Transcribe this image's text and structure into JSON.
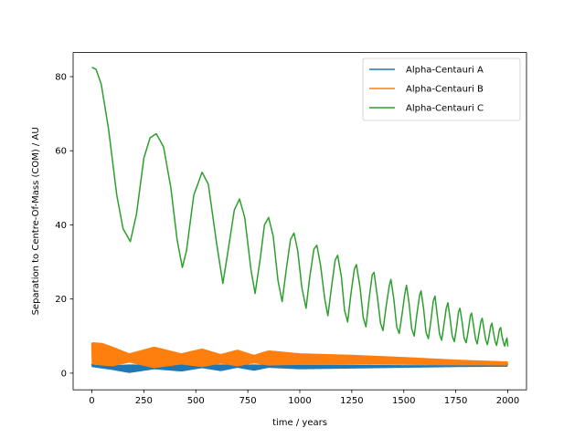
{
  "chart_data": {
    "type": "line",
    "title": "",
    "xlabel": "time / years",
    "ylabel": "Separation to Centre-Of-Mass (COM) / AU",
    "xlim": [
      -90,
      2090
    ],
    "ylim": [
      -4.5,
      86.5
    ],
    "xticks": [
      0,
      250,
      500,
      750,
      1000,
      1250,
      1500,
      1750,
      2000
    ],
    "yticks": [
      0,
      20,
      40,
      60,
      80
    ],
    "grid": false,
    "legend_position": "top-right",
    "series": [
      {
        "name": "Alpha-Centauri A",
        "color": "#1f77b4",
        "envelope": {
          "x": [
            0,
            100,
            180,
            300,
            430,
            530,
            620,
            700,
            780,
            850,
            1000,
            1250,
            1500,
            1750,
            2000
          ],
          "upper": [
            2.5,
            2.0,
            2.2,
            2.1,
            2.2,
            2.1,
            2.2,
            2.1,
            2.2,
            2.1,
            2.1,
            2.1,
            2.0,
            2.0,
            2.0
          ],
          "lower": [
            1.8,
            1.0,
            0.2,
            1.2,
            0.6,
            1.5,
            0.7,
            1.6,
            0.8,
            1.6,
            1.2,
            1.4,
            1.6,
            1.8,
            1.9
          ]
        }
      },
      {
        "name": "Alpha-Centauri B",
        "color": "#ff7f0e",
        "envelope": {
          "x": [
            0,
            50,
            100,
            180,
            300,
            430,
            530,
            620,
            700,
            780,
            850,
            1000,
            1250,
            1500,
            1750,
            2000
          ],
          "upper": [
            8.2,
            8.0,
            7.0,
            5.2,
            7.0,
            5.2,
            6.5,
            5.0,
            6.2,
            4.8,
            6.0,
            5.2,
            4.8,
            4.2,
            3.5,
            3.0
          ],
          "lower": [
            2.5,
            2.2,
            2.0,
            3.0,
            1.5,
            2.5,
            1.8,
            2.7,
            2.0,
            2.8,
            2.2,
            2.4,
            2.5,
            2.4,
            2.3,
            2.2
          ]
        }
      },
      {
        "name": "Alpha-Centauri C",
        "color": "#2ca02c",
        "points": [
          [
            0,
            82.5
          ],
          [
            20,
            82.0
          ],
          [
            45,
            78.0
          ],
          [
            80,
            66.0
          ],
          [
            120,
            48.0
          ],
          [
            150,
            39.0
          ],
          [
            185,
            35.5
          ],
          [
            215,
            43.0
          ],
          [
            250,
            58.0
          ],
          [
            280,
            63.5
          ],
          [
            310,
            64.6
          ],
          [
            345,
            61.0
          ],
          [
            380,
            50.0
          ],
          [
            410,
            36.0
          ],
          [
            435,
            28.5
          ],
          [
            455,
            33.0
          ],
          [
            490,
            48.0
          ],
          [
            530,
            54.2
          ],
          [
            560,
            51.0
          ],
          [
            600,
            35.0
          ],
          [
            630,
            24.2
          ],
          [
            655,
            33.0
          ],
          [
            685,
            44.0
          ],
          [
            710,
            47.0
          ],
          [
            735,
            42.0
          ],
          [
            765,
            28.0
          ],
          [
            785,
            21.5
          ],
          [
            810,
            31.0
          ],
          [
            830,
            40.0
          ],
          [
            850,
            42.0
          ],
          [
            872,
            37.0
          ],
          [
            895,
            25.0
          ],
          [
            915,
            19.3
          ],
          [
            935,
            28.0
          ],
          [
            955,
            36.0
          ],
          [
            972,
            37.8
          ],
          [
            990,
            33.0
          ],
          [
            1010,
            23.0
          ],
          [
            1030,
            17.5
          ],
          [
            1048,
            26.0
          ],
          [
            1068,
            33.5
          ],
          [
            1082,
            34.5
          ],
          [
            1100,
            29.0
          ],
          [
            1120,
            20.0
          ],
          [
            1135,
            15.5
          ],
          [
            1152,
            23.0
          ],
          [
            1170,
            30.5
          ],
          [
            1182,
            31.8
          ],
          [
            1200,
            26.0
          ],
          [
            1215,
            17.0
          ],
          [
            1230,
            13.8
          ],
          [
            1245,
            21.0
          ],
          [
            1262,
            28.0
          ],
          [
            1272,
            29.3
          ],
          [
            1290,
            23.0
          ],
          [
            1305,
            15.0
          ],
          [
            1318,
            12.5
          ],
          [
            1333,
            20.0
          ],
          [
            1348,
            26.5
          ],
          [
            1357,
            27.2
          ],
          [
            1372,
            21.0
          ],
          [
            1388,
            13.5
          ],
          [
            1400,
            11.5
          ],
          [
            1415,
            18.0
          ],
          [
            1430,
            23.5
          ],
          [
            1438,
            25.3
          ],
          [
            1452,
            20.0
          ],
          [
            1466,
            12.5
          ],
          [
            1478,
            10.7
          ],
          [
            1492,
            16.0
          ],
          [
            1505,
            21.5
          ],
          [
            1513,
            23.7
          ],
          [
            1525,
            19.0
          ],
          [
            1538,
            12.0
          ],
          [
            1550,
            10.0
          ],
          [
            1562,
            15.5
          ],
          [
            1576,
            21.0
          ],
          [
            1583,
            22.2
          ],
          [
            1595,
            17.5
          ],
          [
            1607,
            11.0
          ],
          [
            1618,
            9.3
          ],
          [
            1630,
            14.0
          ],
          [
            1642,
            19.5
          ],
          [
            1650,
            20.8
          ],
          [
            1660,
            16.0
          ],
          [
            1672,
            10.5
          ],
          [
            1682,
            8.9
          ],
          [
            1693,
            13.0
          ],
          [
            1704,
            17.5
          ],
          [
            1712,
            19.0
          ],
          [
            1722,
            15.0
          ],
          [
            1733,
            10.0
          ],
          [
            1743,
            8.5
          ],
          [
            1753,
            12.0
          ],
          [
            1763,
            16.5
          ],
          [
            1770,
            17.5
          ],
          [
            1780,
            14.0
          ],
          [
            1790,
            9.5
          ],
          [
            1800,
            8.2
          ],
          [
            1810,
            11.5
          ],
          [
            1820,
            15.5
          ],
          [
            1826,
            16.2
          ],
          [
            1835,
            13.0
          ],
          [
            1845,
            9.2
          ],
          [
            1853,
            7.9
          ],
          [
            1862,
            11.0
          ],
          [
            1871,
            14.0
          ],
          [
            1877,
            14.8
          ],
          [
            1885,
            12.0
          ],
          [
            1894,
            8.9
          ],
          [
            1902,
            7.7
          ],
          [
            1910,
            10.0
          ],
          [
            1918,
            12.7
          ],
          [
            1924,
            13.5
          ],
          [
            1931,
            11.0
          ],
          [
            1939,
            8.6
          ],
          [
            1946,
            7.5
          ],
          [
            1953,
            9.5
          ],
          [
            1960,
            11.8
          ],
          [
            1966,
            12.3
          ],
          [
            1972,
            10.0
          ],
          [
            1979,
            8.3
          ],
          [
            1985,
            7.3
          ],
          [
            1991,
            8.6
          ],
          [
            1996,
            9.5
          ],
          [
            2000,
            7.2
          ]
        ]
      }
    ]
  }
}
